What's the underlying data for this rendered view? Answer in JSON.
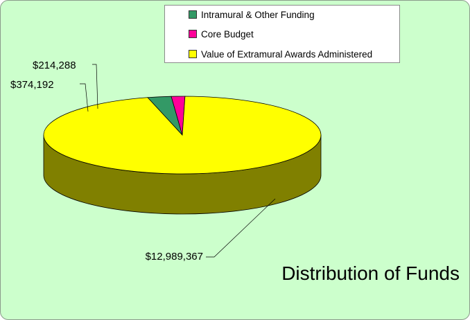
{
  "chart_data": {
    "type": "pie",
    "title": "Distribution of Funds",
    "style": "3d",
    "legend_position": "top-right",
    "slices": [
      {
        "label": "Intramural & Other Funding",
        "value": 374192,
        "display": "$374,192",
        "color": "#339966"
      },
      {
        "label": "Core Budget",
        "value": 214288,
        "display": "$214,288",
        "color": "#ff0099"
      },
      {
        "label": "Value of Extramural  Awards Administered",
        "value": 12989367,
        "display": "$12,989,367",
        "color": "#ffff00"
      }
    ]
  }
}
